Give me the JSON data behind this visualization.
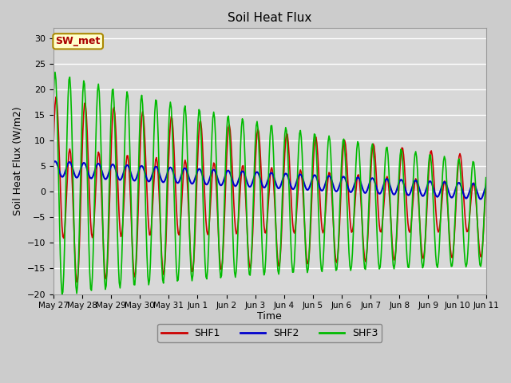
{
  "title": "Soil Heat Flux",
  "ylabel": "Soil Heat Flux (W/m2)",
  "xlabel": "Time",
  "ylim": [
    -20,
    32
  ],
  "yticks": [
    -20,
    -15,
    -10,
    -5,
    0,
    5,
    10,
    15,
    20,
    25,
    30
  ],
  "x_tick_labels": [
    "May 27",
    "May 28",
    "May 29",
    "May 30",
    "May 31",
    "Jun 1",
    "Jun 2",
    "Jun 3",
    "Jun 4",
    "Jun 5",
    "Jun 6",
    "Jun 7",
    "Jun 8",
    "Jun 9",
    "Jun 10",
    "Jun 11"
  ],
  "annotation_text": "SW_met",
  "annotation_bg": "#ffffcc",
  "annotation_border": "#aa8800",
  "annotation_text_color": "#aa0000",
  "fig_bg_color": "#cccccc",
  "plot_bg_color": "#d8d8d8",
  "shf1_color": "#cc0000",
  "shf2_color": "#0000cc",
  "shf3_color": "#00bb00",
  "legend_labels": [
    "SHF1",
    "SHF2",
    "SHF3"
  ]
}
